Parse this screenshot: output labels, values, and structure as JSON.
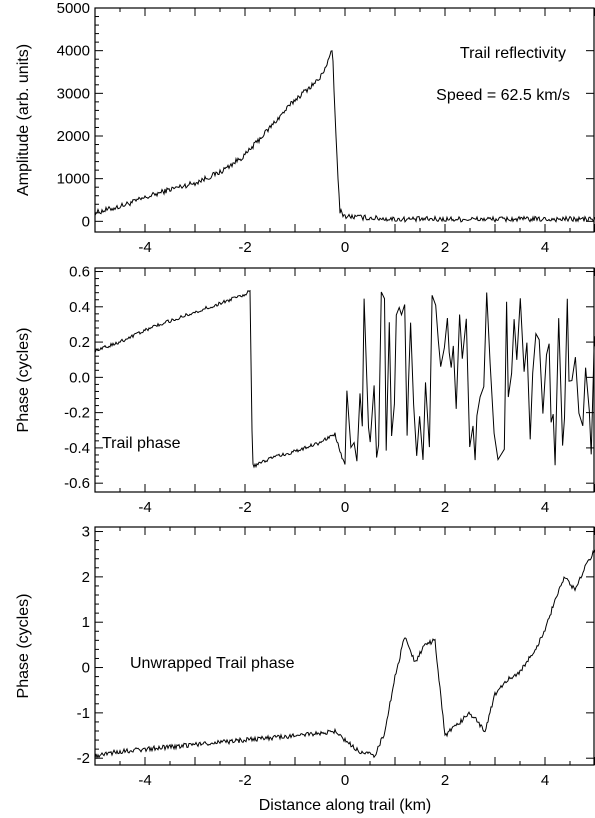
{
  "chart_data": [
    {
      "type": "line",
      "ylabel": "Amplitude (arb. units)",
      "annotations": [
        "Trail reflectivity",
        "Speed = 62.5 km/s"
      ],
      "xlim": [
        -5,
        5
      ],
      "ylim": [
        -250,
        5000
      ],
      "xticks": [
        -4,
        -2,
        0,
        2,
        4
      ],
      "xtick_labels": [
        "-4",
        "-2",
        "0",
        "2",
        "4"
      ],
      "yticks": [
        0,
        1000,
        2000,
        3000,
        4000,
        5000
      ],
      "ytick_labels": [
        "0",
        "1000",
        "2000",
        "3000",
        "4000",
        "5000"
      ],
      "series": [
        {
          "x": [
            -5.0,
            -4.5,
            -4.0,
            -3.5,
            -3.0,
            -2.5,
            -2.0,
            -1.5,
            -1.0,
            -0.5,
            -0.3,
            -0.25,
            -0.2,
            -0.15,
            -0.1,
            0.0,
            0.5,
            1.0,
            2.0,
            3.0,
            4.0,
            5.0
          ],
          "y": [
            200,
            350,
            550,
            750,
            900,
            1150,
            1550,
            2200,
            2850,
            3350,
            3850,
            4050,
            2500,
            1200,
            250,
            120,
            80,
            50,
            50,
            50,
            50,
            50
          ]
        }
      ]
    },
    {
      "type": "line",
      "ylabel": "Phase (cycles)",
      "annotations": [
        "Trail phase"
      ],
      "xlim": [
        -5,
        5
      ],
      "ylim": [
        -0.65,
        0.62
      ],
      "xticks": [
        -4,
        -2,
        0,
        2,
        4
      ],
      "xtick_labels": [
        "-4",
        "-2",
        "0",
        "2",
        "4"
      ],
      "yticks": [
        -0.6,
        -0.4,
        -0.2,
        0.0,
        0.2,
        0.4,
        0.6
      ],
      "ytick_labels": [
        "-0.6",
        "-0.4",
        "-0.2",
        "0.0",
        "0.2",
        "0.4",
        "0.6"
      ],
      "series": [
        {
          "x": [
            -5.0,
            -4.5,
            -4.0,
            -3.5,
            -3.0,
            -2.5,
            -2.0,
            -1.9,
            -1.85,
            -1.8,
            -1.5,
            -1.0,
            -0.5,
            -0.2,
            -0.1,
            0.0
          ],
          "y": [
            0.15,
            0.2,
            0.27,
            0.32,
            0.37,
            0.42,
            0.47,
            0.5,
            -0.5,
            -0.5,
            -0.46,
            -0.42,
            -0.37,
            -0.32,
            -0.42,
            -0.5
          ]
        }
      ]
    },
    {
      "type": "line",
      "xlabel": "Distance along trail (km)",
      "ylabel": "Phase (cycles)",
      "annotations": [
        "Unwrapped Trail phase"
      ],
      "xlim": [
        -5,
        5
      ],
      "ylim": [
        -2.15,
        3.1
      ],
      "xticks": [
        -4,
        -2,
        0,
        2,
        4
      ],
      "xtick_labels": [
        "-4",
        "-2",
        "0",
        "2",
        "4"
      ],
      "yticks": [
        -2,
        -1,
        0,
        1,
        2,
        3
      ],
      "ytick_labels": [
        "-2",
        "-1",
        "0",
        "1",
        "2",
        "3"
      ],
      "series": [
        {
          "x": [
            -5.0,
            -4.5,
            -4.0,
            -3.0,
            -2.0,
            -1.0,
            -0.5,
            -0.2,
            0.0,
            0.3,
            0.6,
            0.8,
            1.0,
            1.2,
            1.4,
            1.6,
            1.8,
            2.0,
            2.2,
            2.5,
            2.8,
            3.0,
            3.2,
            3.5,
            3.8,
            4.0,
            4.2,
            4.4,
            4.6,
            4.8,
            5.0
          ],
          "y": [
            -1.95,
            -1.85,
            -1.8,
            -1.7,
            -1.6,
            -1.5,
            -1.45,
            -1.4,
            -1.6,
            -1.85,
            -1.95,
            -1.4,
            -0.2,
            0.7,
            0.1,
            0.5,
            0.6,
            -1.5,
            -1.3,
            -1.0,
            -1.4,
            -0.6,
            -0.3,
            -0.1,
            0.4,
            0.8,
            1.5,
            2.0,
            1.7,
            2.2,
            2.6
          ]
        }
      ]
    }
  ]
}
